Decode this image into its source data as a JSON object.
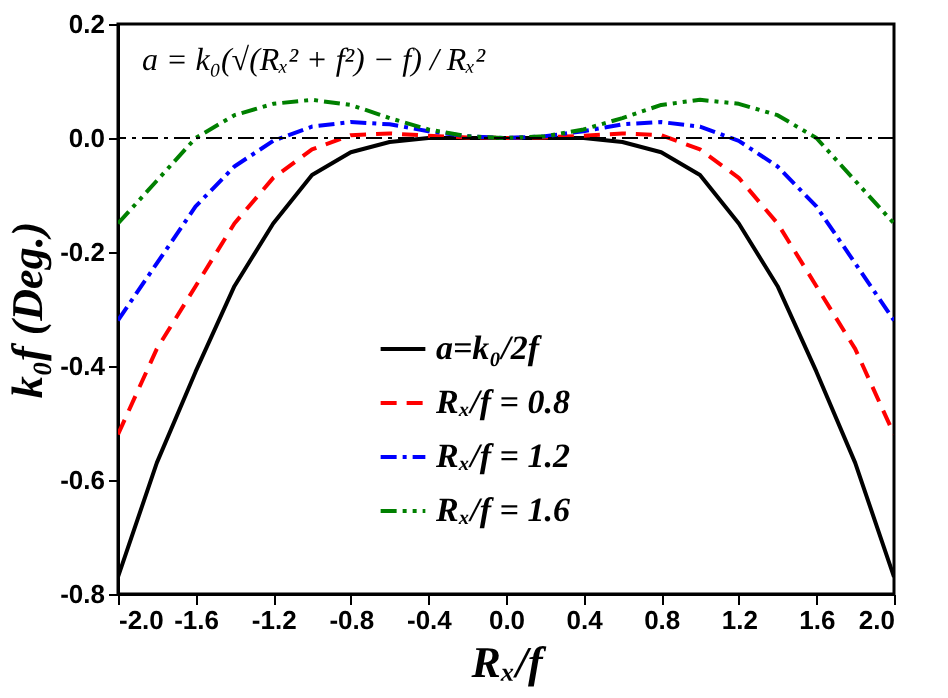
{
  "chart_data": {
    "type": "line",
    "xlabel": "Rₓ/f",
    "ylabel": "k₀f (Deg.)",
    "x": [
      -2.0,
      -1.8,
      -1.6,
      -1.4,
      -1.2,
      -1.0,
      -0.8,
      -0.6,
      -0.4,
      -0.2,
      0.0,
      0.2,
      0.4,
      0.6,
      0.8,
      1.0,
      1.2,
      1.4,
      1.6,
      1.8,
      2.0
    ],
    "xlim": [
      -2.0,
      2.0
    ],
    "xticks": [
      {
        "value": -2.0,
        "label": "-2.0"
      },
      {
        "value": -1.6,
        "label": "-1.6"
      },
      {
        "value": -1.2,
        "label": "-1.2"
      },
      {
        "value": -0.8,
        "label": "-0.8"
      },
      {
        "value": -0.4,
        "label": "-0.4"
      },
      {
        "value": 0,
        "label": "0.0"
      },
      {
        "value": 0.4,
        "label": "0.4"
      },
      {
        "value": 0.8,
        "label": "0.8"
      },
      {
        "value": 1.2,
        "label": "1.2"
      },
      {
        "value": 1.6,
        "label": "1.6"
      },
      {
        "value": 2.0,
        "label": "2.0"
      }
    ],
    "ylim": [
      -0.8,
      0.2
    ],
    "yticks": [
      {
        "value": -0.8,
        "label": "-0.8"
      },
      {
        "value": -0.6,
        "label": "-0.6"
      },
      {
        "value": -0.4,
        "label": "-0.4"
      },
      {
        "value": -0.2,
        "label": "-0.2"
      },
      {
        "value": 0,
        "label": "0.0"
      },
      {
        "value": 0.2,
        "label": "0.2"
      }
    ],
    "series": [
      {
        "name": "a=k₀/2f",
        "color": "#000000",
        "line_style": "solid",
        "values": [
          -0.77,
          -0.57,
          -0.41,
          -0.26,
          -0.15,
          -0.065,
          -0.025,
          -0.007,
          0.0,
          0.0,
          0.0,
          0.0,
          0.0,
          -0.007,
          -0.025,
          -0.065,
          -0.15,
          -0.26,
          -0.41,
          -0.57,
          -0.77
        ]
      },
      {
        "name": "Rₓ/f = 0.8",
        "color": "#ff0000",
        "line_style": "dashed",
        "values": [
          -0.52,
          -0.37,
          -0.26,
          -0.15,
          -0.07,
          -0.02,
          0.005,
          0.008,
          0.004,
          0.001,
          0.0,
          0.001,
          0.004,
          0.008,
          0.005,
          -0.02,
          -0.07,
          -0.15,
          -0.26,
          -0.37,
          -0.52
        ]
      },
      {
        "name": "Rₓ/f = 1.2",
        "color": "#0000ff",
        "line_style": "dashdot",
        "values": [
          -0.32,
          -0.22,
          -0.12,
          -0.05,
          -0.005,
          0.02,
          0.028,
          0.024,
          0.012,
          0.003,
          0.0,
          0.003,
          0.012,
          0.024,
          0.028,
          0.02,
          -0.005,
          -0.05,
          -0.12,
          -0.22,
          -0.32
        ]
      },
      {
        "name": "Rₓ/f = 1.6",
        "color": "#008000",
        "line_style": "dashdotdot",
        "values": [
          -0.15,
          -0.075,
          0.0,
          0.04,
          0.06,
          0.067,
          0.058,
          0.035,
          0.015,
          0.003,
          0.0,
          0.003,
          0.015,
          0.035,
          0.058,
          0.067,
          0.06,
          0.04,
          0.0,
          -0.075,
          -0.15
        ]
      }
    ],
    "ref_lines": [
      {
        "axis": "y",
        "value": 0,
        "label": null,
        "color": "#000000",
        "line_style": "dashdot"
      }
    ],
    "annotations": [
      "a = k₀(√(Rₓ² + f²) − f) / Rₓ²"
    ],
    "legend": "bottom",
    "grid": false
  }
}
